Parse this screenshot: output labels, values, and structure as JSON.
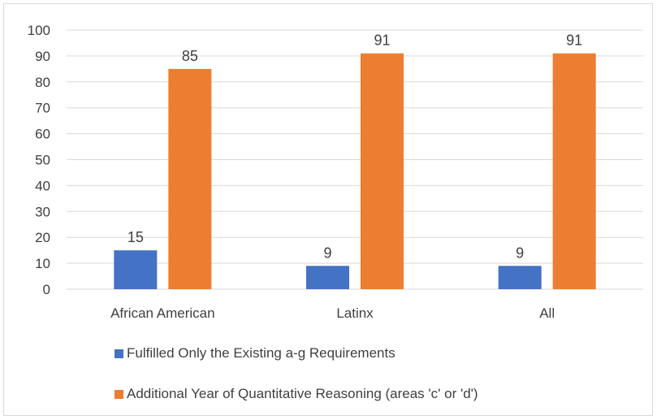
{
  "chart_data": {
    "type": "bar",
    "title": "",
    "xlabel": "",
    "ylabel": "",
    "categories": [
      "African American",
      "Latinx",
      "All"
    ],
    "ylim": [
      0,
      100
    ],
    "yticks": [
      0,
      10,
      20,
      30,
      40,
      50,
      60,
      70,
      80,
      90,
      100
    ],
    "grid": true,
    "legend_position": "bottom",
    "data_labels": true,
    "series": [
      {
        "name": "Fulfilled Only the Existing a-g Requirements",
        "color": "#4472c4",
        "values": [
          15,
          9,
          9
        ]
      },
      {
        "name": "Additional Year of Quantitative Reasoning (areas 'c' or 'd')",
        "color": "#ed7d31",
        "values": [
          85,
          91,
          91
        ]
      }
    ]
  }
}
